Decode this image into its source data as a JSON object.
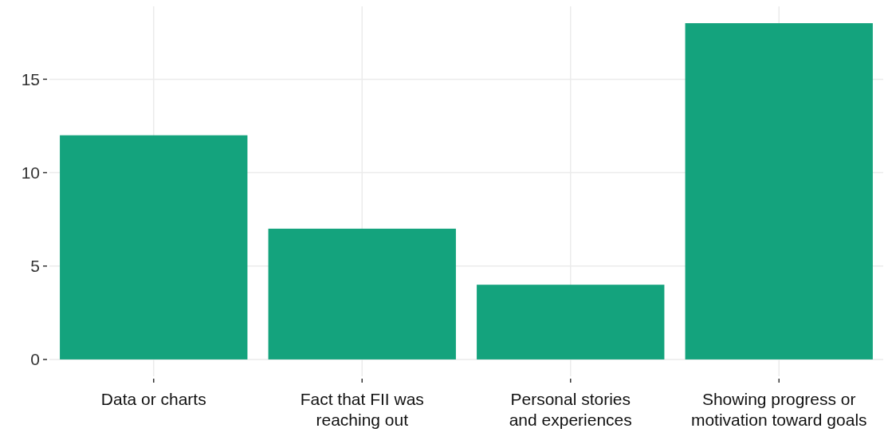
{
  "chart_data": {
    "type": "bar",
    "categories": [
      "Data or charts",
      "Fact that FII was\nreaching out",
      "Personal stories\nand experiences",
      "Showing progress or\nmotivation toward goals"
    ],
    "values": [
      12,
      7,
      4,
      18
    ],
    "color": "#14a37d",
    "ylim": [
      -0.9,
      18.9
    ],
    "yticks": [
      0,
      5,
      10,
      15
    ],
    "grid": true
  }
}
